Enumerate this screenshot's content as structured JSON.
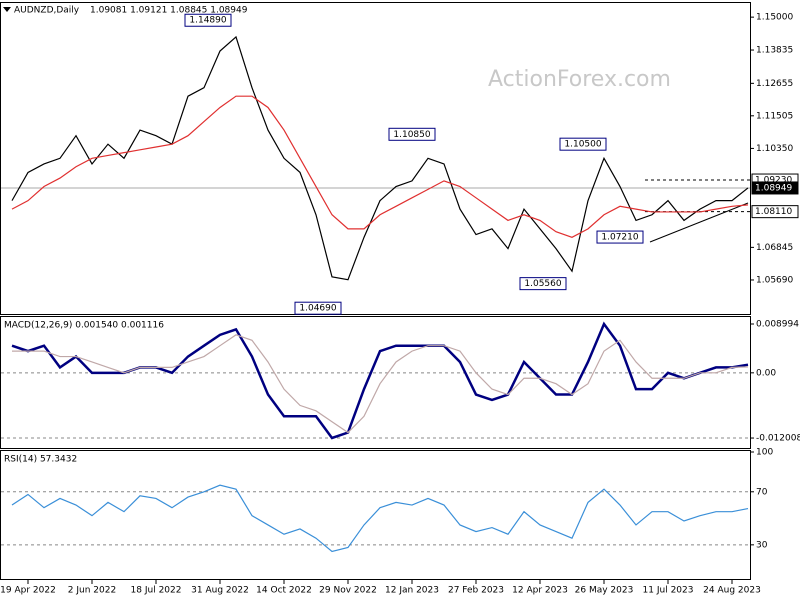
{
  "chart_data": [
    {
      "type": "line",
      "title": "AUDNZD,Daily",
      "quote": "1.09081 1.09121 1.08845 1.08949",
      "watermark": "ActionForex.com",
      "categories": [
        null,
        "19 Apr 2022",
        null,
        null,
        null,
        "2 Jun 2022",
        null,
        null,
        null,
        "18 Jul 2022",
        null,
        null,
        null,
        "31 Aug 2022",
        null,
        null,
        null,
        "14 Oct 2022",
        null,
        null,
        null,
        "29 Nov 2022",
        null,
        null,
        null,
        "12 Jan 2023",
        null,
        null,
        null,
        "27 Feb 2023",
        null,
        null,
        null,
        "12 Apr 2023",
        null,
        null,
        null,
        "26 May 2023",
        null,
        null,
        null,
        "11 Jul 2023",
        null,
        null,
        null,
        "24 Aug 2023",
        null
      ],
      "series": [
        {
          "color": "#000000",
          "values": [
            1.085,
            1.095,
            1.098,
            1.1,
            1.108,
            1.098,
            1.105,
            1.1,
            1.11,
            1.108,
            1.105,
            1.122,
            1.125,
            1.138,
            1.143,
            1.125,
            1.11,
            1.1,
            1.095,
            1.08,
            1.058,
            1.057,
            1.072,
            1.085,
            1.09,
            1.092,
            1.1,
            1.098,
            1.082,
            1.073,
            1.075,
            1.068,
            1.082,
            1.075,
            1.068,
            1.06,
            1.085,
            1.1,
            1.09,
            1.078,
            1.08,
            1.085,
            1.078,
            1.082,
            1.085,
            1.085,
            1.0895
          ]
        },
        {
          "color": "#e03030",
          "values": [
            1.082,
            1.085,
            1.09,
            1.093,
            1.097,
            1.1,
            1.101,
            1.102,
            1.103,
            1.104,
            1.105,
            1.108,
            1.113,
            1.118,
            1.122,
            1.122,
            1.118,
            1.11,
            1.1,
            1.09,
            1.08,
            1.075,
            1.075,
            1.08,
            1.083,
            1.086,
            1.089,
            1.092,
            1.09,
            1.086,
            1.082,
            1.078,
            1.08,
            1.078,
            1.074,
            1.072,
            1.075,
            1.08,
            1.083,
            1.082,
            1.081,
            1.081,
            1.081,
            1.081,
            1.082,
            1.083,
            1.0835
          ]
        }
      ],
      "ylim": [
        1.0452,
        1.1543
      ],
      "yticks": [
        {
          "value": 1.15,
          "label": "1.15000"
        },
        {
          "value": 1.13835,
          "label": "1.13835"
        },
        {
          "value": 1.12655,
          "label": "1.12655"
        },
        {
          "value": 1.11505,
          "label": "1.11505"
        },
        {
          "value": 1.1035,
          "label": "1.10350"
        },
        {
          "value": 1.06845,
          "label": "1.06845"
        },
        {
          "value": 1.0569,
          "label": "1.05690"
        }
      ],
      "levels": [
        {
          "value": 1.0923,
          "label": "1.09230",
          "style": "dashed"
        },
        {
          "value": 1.08949,
          "label": "1.08949",
          "style": "current"
        },
        {
          "value": 1.0811,
          "label": "1.08110",
          "style": "dashed"
        }
      ],
      "annotations": [
        {
          "value": 1.1489,
          "label": "1.14890"
        },
        {
          "value": 1.1085,
          "label": "1.10850"
        },
        {
          "value": 1.0469,
          "label": "1.04690"
        },
        {
          "value": 1.0556,
          "label": "1.05560"
        },
        {
          "value": 1.105,
          "label": "1.10500"
        },
        {
          "value": 1.0721,
          "label": "1.07210"
        }
      ]
    },
    {
      "type": "line",
      "title": "MACD(12,26,9) 0.001540 0.001116",
      "series": [
        {
          "color": "#000080",
          "values": [
            0.005,
            0.004,
            0.005,
            0.001,
            0.003,
            0,
            0,
            0,
            0.001,
            0.001,
            0,
            0.003,
            0.005,
            0.007,
            0.008,
            0.003,
            -0.004,
            -0.008,
            -0.008,
            -0.008,
            -0.012,
            -0.011,
            -0.003,
            0.004,
            0.005,
            0.005,
            0.005,
            0.005,
            0.002,
            -0.004,
            -0.005,
            -0.004,
            0.002,
            -0.001,
            -0.004,
            -0.004,
            0.002,
            0.009,
            0.005,
            -0.003,
            -0.003,
            0,
            -0.001,
            0,
            0.001,
            0.001,
            0.0015
          ]
        },
        {
          "color": "#c0a8a8",
          "values": [
            0.004,
            0.004,
            0.004,
            0.003,
            0.003,
            0.002,
            0.001,
            0,
            0.001,
            0.001,
            0.001,
            0.002,
            0.003,
            0.005,
            0.007,
            0.006,
            0.002,
            -0.003,
            -0.006,
            -0.007,
            -0.009,
            -0.011,
            -0.008,
            -0.002,
            0.002,
            0.004,
            0.005,
            0.005,
            0.004,
            0,
            -0.003,
            -0.004,
            -0.001,
            -0.001,
            -0.002,
            -0.004,
            -0.002,
            0.004,
            0.006,
            0.002,
            -0.001,
            -0.001,
            -0.001,
            0,
            0,
            0.001,
            0.0011
          ]
        }
      ],
      "ylim": [
        -0.01366,
        0.0101
      ],
      "yticks": [
        0.008994,
        {
          "value": 0,
          "label": "0.00"
        },
        -0.012008
      ]
    },
    {
      "type": "line",
      "title": "RSI(14) 57.3432",
      "series": [
        {
          "color": "#3a8fd8",
          "values": [
            60,
            68,
            58,
            65,
            60,
            52,
            62,
            55,
            67,
            65,
            58,
            66,
            70,
            75,
            72,
            52,
            45,
            38,
            42,
            35,
            25,
            28,
            45,
            58,
            62,
            60,
            65,
            60,
            45,
            40,
            43,
            38,
            55,
            45,
            40,
            35,
            62,
            72,
            60,
            45,
            55,
            55,
            48,
            52,
            55,
            55,
            57.3432
          ]
        }
      ],
      "ylim": [
        5,
        100
      ],
      "yticks": [
        100,
        70,
        30
      ]
    }
  ]
}
